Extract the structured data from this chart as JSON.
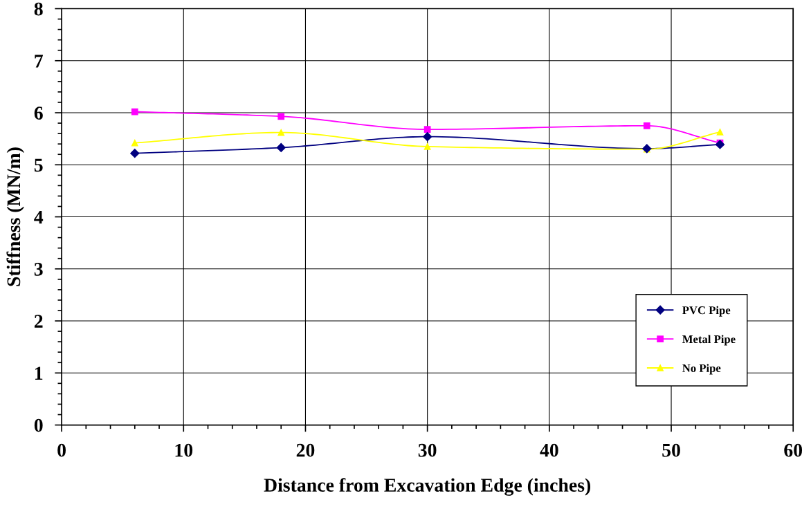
{
  "chart_data": {
    "type": "line",
    "xlabel": "Distance from Excavation Edge (inches)",
    "ylabel": "Stiffness (MN/m)",
    "x": [
      6,
      18,
      30,
      48,
      54
    ],
    "series": [
      {
        "name": "PVC Pipe",
        "color": "#000080",
        "marker": "diamond",
        "values": [
          5.22,
          5.33,
          5.54,
          5.31,
          5.39
        ]
      },
      {
        "name": "Metal Pipe",
        "color": "#ff00ff",
        "marker": "square",
        "values": [
          6.02,
          5.93,
          5.68,
          5.75,
          5.42
        ]
      },
      {
        "name": "No Pipe",
        "color": "#ffff00",
        "marker": "triangle",
        "values": [
          5.42,
          5.62,
          5.35,
          5.3,
          5.63
        ]
      }
    ],
    "xlim": [
      0,
      60
    ],
    "xticks": [
      0,
      10,
      20,
      30,
      40,
      50,
      60
    ],
    "ylim": [
      0,
      8
    ],
    "yticks": [
      0,
      1,
      2,
      3,
      4,
      5,
      6,
      7,
      8
    ],
    "grid": true,
    "legend": "bottom right"
  }
}
